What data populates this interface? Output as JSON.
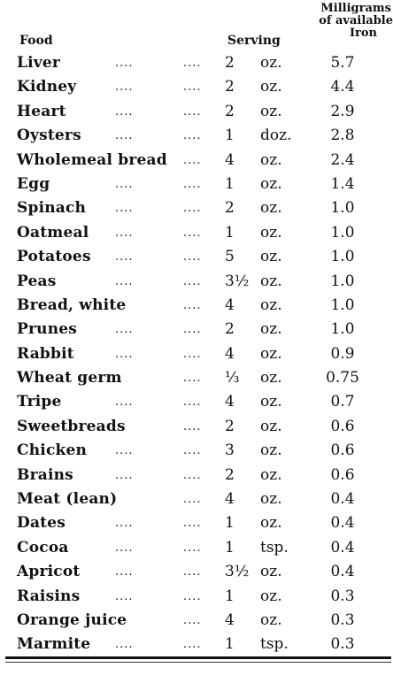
{
  "headers": {
    "food": "Food",
    "serving": "Serving",
    "iron_line1": "Milligrams",
    "iron_line2": "of available",
    "iron_line3": "Iron"
  },
  "rows": [
    {
      "food": "Liver",
      "d1": "....",
      "d2": "....",
      "qty": "2",
      "unit": "oz.",
      "iron": "5.7"
    },
    {
      "food": "Kidney",
      "d1": "....",
      "d2": "....",
      "qty": "2",
      "unit": "oz.",
      "iron": "4.4"
    },
    {
      "food": "Heart",
      "d1": "....",
      "d2": "....",
      "qty": "2",
      "unit": "oz.",
      "iron": "2.9"
    },
    {
      "food": "Oysters",
      "d1": "....",
      "d2": "....",
      "qty": "1",
      "unit": "doz.",
      "iron": "2.8"
    },
    {
      "food": "Wholemeal bread",
      "d1": "",
      "d2": "....",
      "qty": "4",
      "unit": "oz.",
      "iron": "2.4"
    },
    {
      "food": "Egg",
      "d1": "....",
      "d2": "....",
      "qty": "1",
      "unit": "oz.",
      "iron": "1.4"
    },
    {
      "food": "Spinach",
      "d1": "....",
      "d2": "....",
      "qty": "2",
      "unit": "oz.",
      "iron": "1.0"
    },
    {
      "food": "Oatmeal",
      "d1": "....",
      "d2": "....",
      "qty": "1",
      "unit": "oz.",
      "iron": "1.0"
    },
    {
      "food": "Potatoes",
      "d1": "....",
      "d2": "....",
      "qty": "5",
      "unit": "oz.",
      "iron": "1.0"
    },
    {
      "food": "Peas",
      "d1": "....",
      "d2": "....",
      "qty": "3½",
      "unit": "oz.",
      "iron": "1.0"
    },
    {
      "food": "Bread, white",
      "d1": "",
      "d2": "....",
      "qty": "4",
      "unit": "oz.",
      "iron": "1.0"
    },
    {
      "food": "Prunes",
      "d1": "....",
      "d2": "....",
      "qty": "2",
      "unit": "oz.",
      "iron": "1.0"
    },
    {
      "food": "Rabbit",
      "d1": "....",
      "d2": "....",
      "qty": "4",
      "unit": "oz.",
      "iron": "0.9"
    },
    {
      "food": "Wheat germ",
      "d1": "",
      "d2": "....",
      "qty": "⅓",
      "unit": "oz.",
      "iron": "0.75"
    },
    {
      "food": "Tripe",
      "d1": "....",
      "d2": "....",
      "qty": "4",
      "unit": "oz.",
      "iron": "0.7"
    },
    {
      "food": "Sweetbreads",
      "d1": "",
      "d2": "....",
      "qty": "2",
      "unit": "oz.",
      "iron": "0.6"
    },
    {
      "food": "Chicken",
      "d1": "....",
      "d2": "....",
      "qty": "3",
      "unit": "oz.",
      "iron": "0.6"
    },
    {
      "food": "Brains",
      "d1": "....",
      "d2": "....",
      "qty": "2",
      "unit": "oz.",
      "iron": "0.6"
    },
    {
      "food": "Meat (lean)",
      "d1": "",
      "d2": "....",
      "qty": "4",
      "unit": "oz.",
      "iron": "0.4"
    },
    {
      "food": "Dates",
      "d1": "....",
      "d2": "....",
      "qty": "1",
      "unit": "oz.",
      "iron": "0.4"
    },
    {
      "food": "Cocoa",
      "d1": "....",
      "d2": "....",
      "qty": "1",
      "unit": "tsp.",
      "iron": "0.4"
    },
    {
      "food": "Apricot",
      "d1": "....",
      "d2": "....",
      "qty": "3½",
      "unit": "oz.",
      "iron": "0.4"
    },
    {
      "food": "Raisins",
      "d1": "....",
      "d2": "....",
      "qty": "1",
      "unit": "oz.",
      "iron": "0.3"
    },
    {
      "food": "Orange juice",
      "d1": "",
      "d2": "....",
      "qty": "4",
      "unit": "oz.",
      "iron": "0.3"
    },
    {
      "food": "Marmite",
      "d1": "....",
      "d2": "....",
      "qty": "1",
      "unit": "tsp.",
      "iron": "0.3"
    }
  ]
}
